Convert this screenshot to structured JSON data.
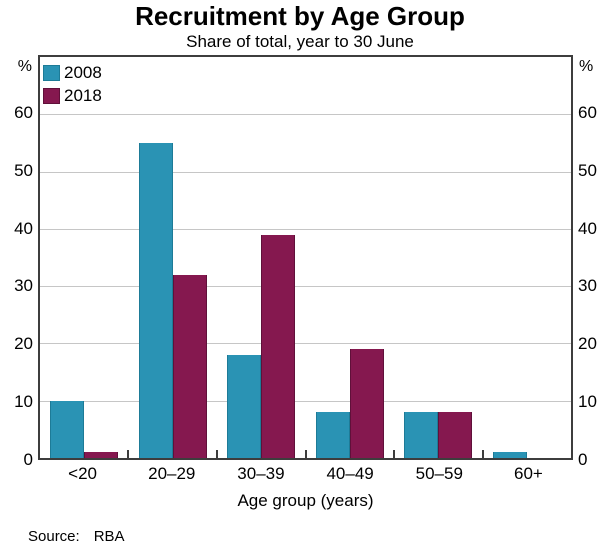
{
  "chart_data": {
    "type": "bar",
    "title": "Recruitment by Age Group",
    "subtitle": "Share of total, year to 30 June",
    "xlabel": "Age group (years)",
    "ylabel_left": "%",
    "ylabel_right": "%",
    "ylim": [
      0,
      70
    ],
    "yticks": [
      0,
      10,
      20,
      30,
      40,
      50,
      60
    ],
    "grid": true,
    "legend_position": "top-left",
    "categories": [
      "<20",
      "20–29",
      "30–39",
      "40–49",
      "50–59",
      "60+"
    ],
    "series": [
      {
        "name": "2008",
        "color": "#2a93b4",
        "edge_color": "#1d7родов95",
        "values": [
          10,
          55,
          18,
          8,
          8,
          1
        ]
      },
      {
        "name": "2018",
        "color": "#85184f",
        "edge_color": "#5e0f37",
        "values": [
          1,
          32,
          39,
          19,
          8,
          0
        ]
      }
    ]
  },
  "frame_color": "#3d3d3d",
  "gridline_color": "#c6c6c6",
  "source": {
    "label": "Source:",
    "value": "RBA"
  }
}
